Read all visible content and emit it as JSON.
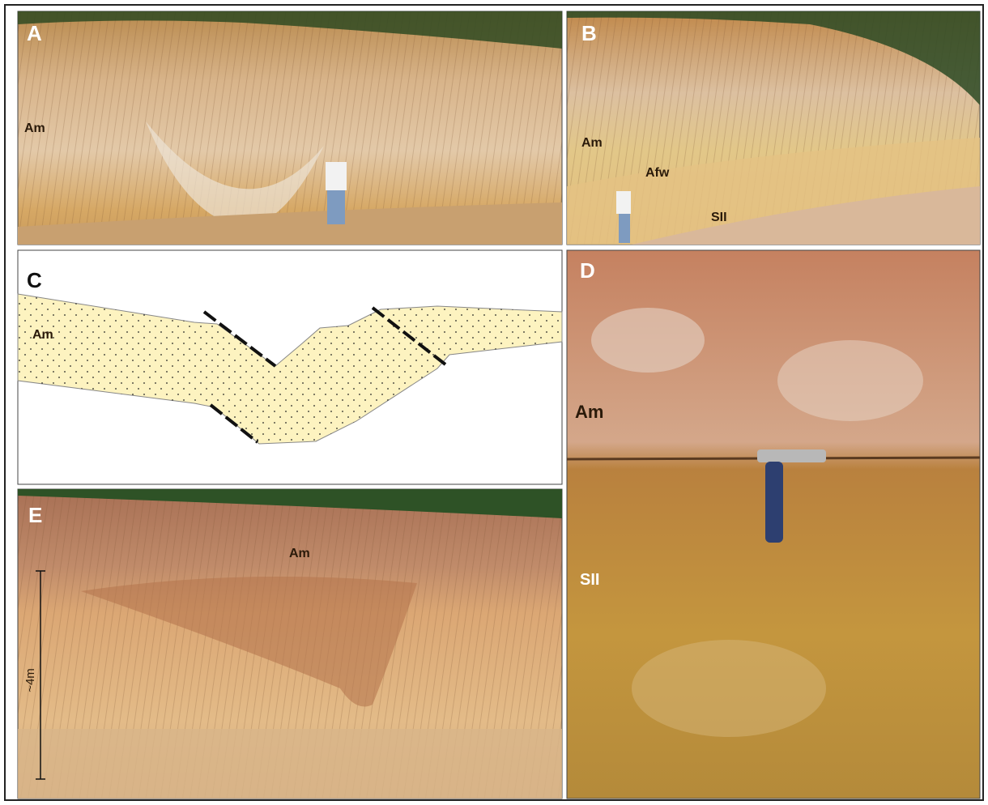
{
  "panels": [
    {
      "label": "A",
      "annotations": [
        "Am"
      ]
    },
    {
      "label": "B",
      "annotations": [
        "Am",
        "Afw",
        "SII"
      ]
    },
    {
      "label": "C",
      "annotations": [
        "Am"
      ]
    },
    {
      "label": "D",
      "annotations": [
        "Am",
        "SII"
      ]
    },
    {
      "label": "E",
      "annotations": [
        "Am",
        "~4m"
      ]
    }
  ]
}
